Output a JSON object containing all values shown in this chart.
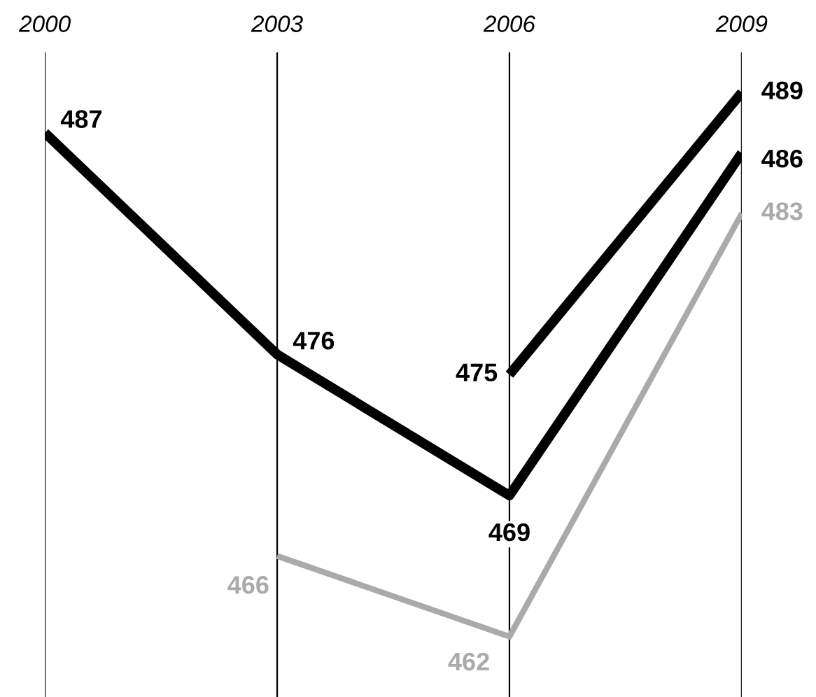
{
  "chart_data": {
    "type": "line",
    "x": [
      2000,
      2003,
      2006,
      2009
    ],
    "xlim": [
      2000,
      2009
    ],
    "xticks": [
      2000,
      2003,
      2006,
      2009
    ],
    "ylim": [
      459,
      491
    ],
    "tick_labels": "x",
    "grid": "x",
    "data_labels": true,
    "marker": "none",
    "line_style": "solid",
    "series": [
      {
        "color": "#000000",
        "values": [
          487,
          476,
          469,
          486
        ]
      },
      {
        "color": "#000000",
        "values": [
          null,
          null,
          475,
          489
        ]
      },
      {
        "color": "#aaaaaa",
        "values": [
          null,
          466,
          462,
          483
        ]
      }
    ]
  }
}
